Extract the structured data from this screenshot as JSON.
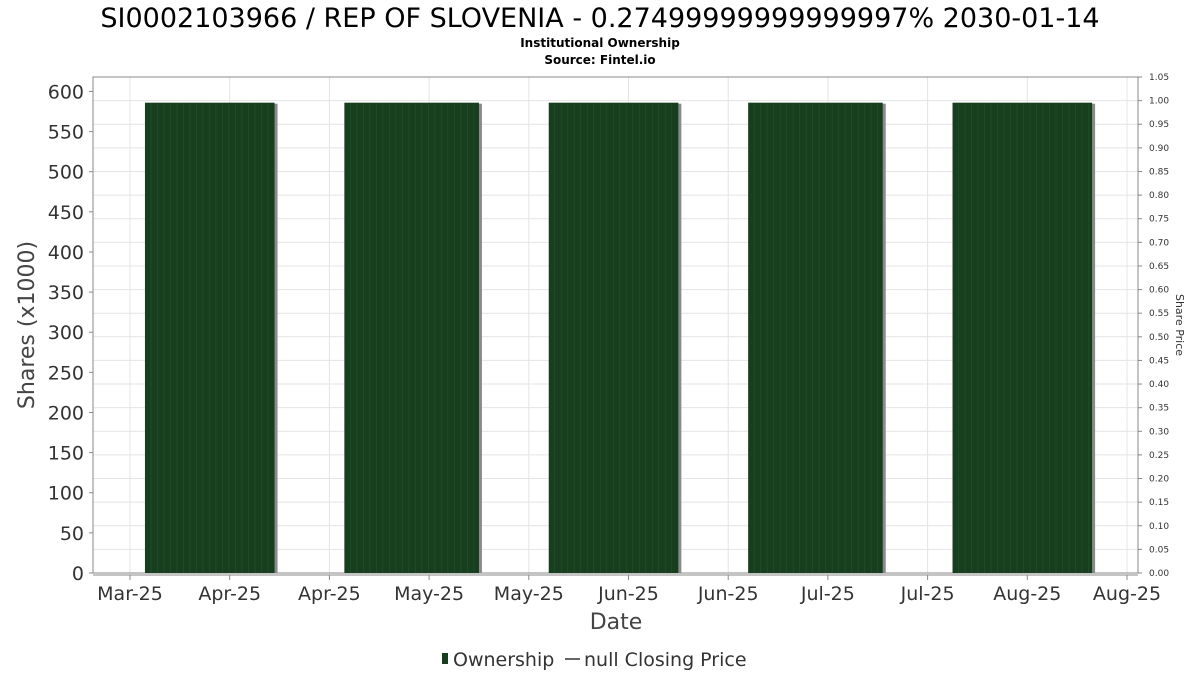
{
  "chart_data": {
    "type": "bar",
    "title": "SI0002103966 / REP OF SLOVENIA - 0.27499999999999997% 2030-01-14",
    "subtitle_lines": [
      "Institutional Ownership",
      "Source: Fintel.io"
    ],
    "xlabel": "Date",
    "ylabel": "Shares (x1000)",
    "y2label": "Share Price",
    "x_tick_labels": [
      "Mar-25",
      "Apr-25",
      "Apr-25",
      "May-25",
      "May-25",
      "Jun-25",
      "Jun-25",
      "Jul-25",
      "Jul-25",
      "Aug-25",
      "Aug-25"
    ],
    "ylim": [
      0,
      618
    ],
    "y_ticks": [
      0,
      50,
      100,
      150,
      200,
      250,
      300,
      350,
      400,
      450,
      500,
      550,
      600
    ],
    "y2lim": [
      0,
      1.05
    ],
    "y2_ticks": [
      "0.00",
      "0.05",
      "0.10",
      "0.15",
      "0.20",
      "0.25",
      "0.30",
      "0.35",
      "0.40",
      "0.45",
      "0.50",
      "0.55",
      "0.60",
      "0.65",
      "0.70",
      "0.75",
      "0.80",
      "0.85",
      "0.90",
      "0.95",
      "1.00",
      "1.05"
    ],
    "x_range_ticks": [
      0,
      10
    ],
    "series": [
      {
        "name": "Ownership",
        "color": "#173f1f",
        "bars": [
          {
            "start": 0.15,
            "end": 1.45,
            "value": 586
          },
          {
            "start": 2.15,
            "end": 3.5,
            "value": 586
          },
          {
            "start": 4.2,
            "end": 5.5,
            "value": 586
          },
          {
            "start": 6.2,
            "end": 7.55,
            "value": 586
          },
          {
            "start": 8.25,
            "end": 9.65,
            "value": 586
          }
        ]
      },
      {
        "name": "null Closing Price",
        "color": "#666666",
        "values": []
      }
    ],
    "grid": true,
    "legend_position": "bottom-center"
  }
}
